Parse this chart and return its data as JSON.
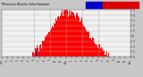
{
  "title": "Milwaukee Weather Solar Radiation",
  "bg_color": "#c8c8c8",
  "plot_bg_color": "#f0f0f0",
  "bar_color": "#ff0000",
  "blue_bar_color": "#0000cc",
  "legend_red": "#dd0000",
  "legend_blue": "#0000cc",
  "ylim": [
    0,
    900
  ],
  "num_bars": 1440,
  "peak_minute": 750,
  "peak_value": 860,
  "sigma": 200,
  "noise_scale": 40,
  "blue_bar_minute": 390,
  "blue_bar_value": 130,
  "start_minute": 340,
  "end_minute": 1200,
  "grid_positions": [
    360,
    540,
    720,
    900,
    1080
  ],
  "xtick_positions": [
    0,
    60,
    120,
    180,
    240,
    300,
    360,
    420,
    480,
    540,
    600,
    660,
    720,
    780,
    840,
    900,
    960,
    1020,
    1080,
    1140,
    1200,
    1260,
    1320,
    1380,
    1440
  ],
  "xtick_labels": [
    "12a",
    "1",
    "2",
    "3",
    "4",
    "5",
    "6",
    "7",
    "8",
    "9",
    "10",
    "11",
    "12p",
    "1",
    "2",
    "3",
    "4",
    "5",
    "6",
    "7",
    "8",
    "9",
    "10",
    "11",
    "12a"
  ],
  "ytick_positions": [
    0,
    100,
    200,
    300,
    400,
    500,
    600,
    700,
    800,
    900
  ],
  "ytick_labels": [
    "0",
    "1",
    "2",
    "3",
    "4",
    "5",
    "6",
    "7",
    "8",
    "9"
  ]
}
